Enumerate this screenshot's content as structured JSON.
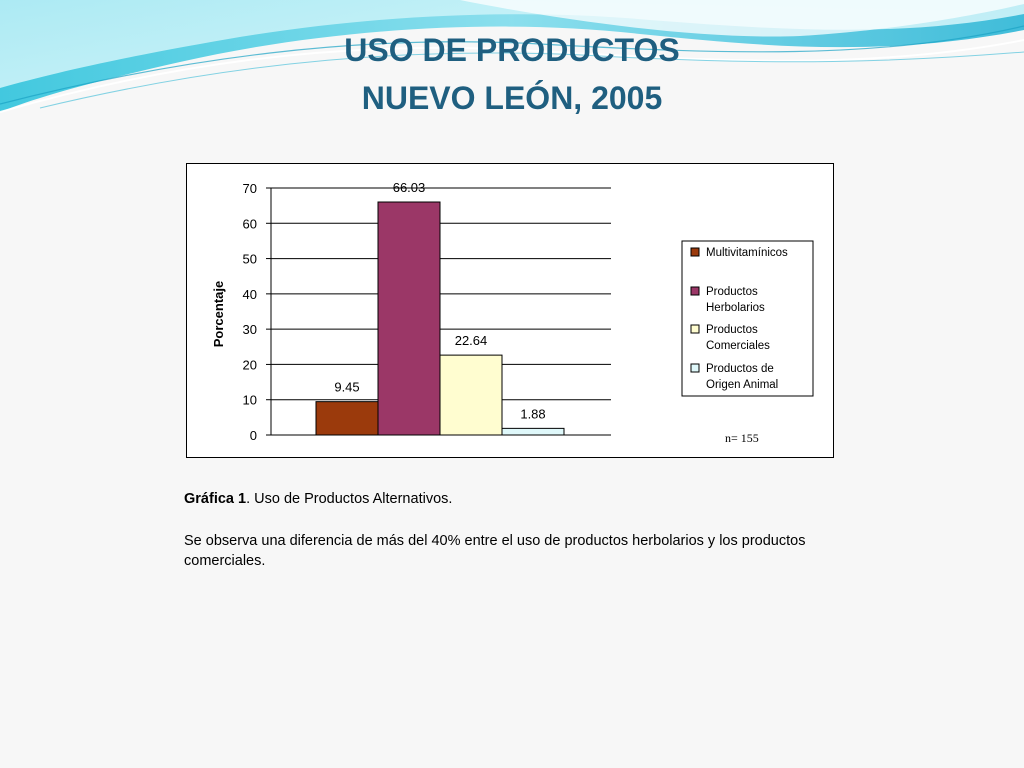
{
  "slide": {
    "title_line1": "USO DE PRODUCTOS",
    "title_line2": "NUEVO LEÓN, 2005"
  },
  "chart_data": {
    "type": "bar",
    "categories": [
      "Multivitamínicos",
      "Productos Herbolarios",
      "Productos Comerciales",
      "Productos de Origen Animal"
    ],
    "values": [
      9.45,
      66.03,
      22.64,
      1.88
    ],
    "value_labels": [
      "9.45",
      "66.03",
      "22.64",
      "1.88"
    ],
    "colors": [
      "#9b3a0c",
      "#9b3767",
      "#fffdd0",
      "#dff8fa"
    ],
    "ylabel": "Porcentaje",
    "xlabel": "",
    "title": "",
    "ylim": [
      0,
      70
    ],
    "yticks": [
      0,
      10,
      20,
      30,
      40,
      50,
      60,
      70
    ],
    "grid": true,
    "legend": {
      "placement": "right",
      "entries": [
        [
          "Multivitamínicos"
        ],
        [
          "Productos",
          "Herbolarios"
        ],
        [
          "Productos",
          "Comerciales"
        ],
        [
          "Productos de",
          "Origen Animal"
        ]
      ]
    },
    "annotation": "n= 155"
  },
  "caption": {
    "label_bold": "Gráfica 1",
    "label_rest": ". Uso de Productos Alternativos.",
    "body": "Se observa una diferencia de más del 40% entre el uso de productos herbolarios y los productos comerciales."
  }
}
